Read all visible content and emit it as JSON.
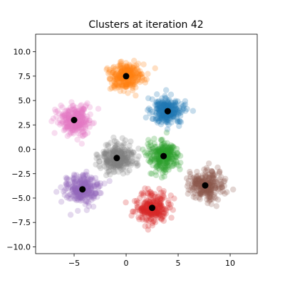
{
  "chart_data": {
    "type": "scatter",
    "title": "Clusters at iteration 42",
    "xlabel": "",
    "ylabel": "",
    "xlim": [
      -8.7,
      12.6
    ],
    "ylim": [
      -10.7,
      11.8
    ],
    "xticks": [
      -5,
      0,
      5,
      10
    ],
    "yticks": [
      -10.0,
      -7.5,
      -5.0,
      -2.5,
      0.0,
      2.5,
      5.0,
      7.5,
      10.0
    ],
    "xtick_labels": [
      "−5",
      "0",
      "5",
      "10"
    ],
    "ytick_labels": [
      "−10.0",
      "−7.5",
      "−5.0",
      "−2.5",
      "0.0",
      "2.5",
      "5.0",
      "7.5",
      "10.0"
    ],
    "grid": false,
    "legend": false,
    "point_alpha": 0.25,
    "centroid_color": "#000000",
    "clusters": [
      {
        "color": "#ff7f0e",
        "centroid": [
          0.0,
          7.5
        ],
        "spread": [
          1.45,
          1.35
        ]
      },
      {
        "color": "#1f77b4",
        "centroid": [
          4.0,
          3.9
        ],
        "spread": [
          1.45,
          1.35
        ]
      },
      {
        "color": "#e377c2",
        "centroid": [
          -5.0,
          3.0
        ],
        "spread": [
          1.45,
          1.35
        ]
      },
      {
        "color": "#7f7f7f",
        "centroid": [
          -0.9,
          -0.9
        ],
        "spread": [
          1.6,
          1.3
        ]
      },
      {
        "color": "#2ca02c",
        "centroid": [
          3.6,
          -0.7
        ],
        "spread": [
          1.25,
          1.35
        ]
      },
      {
        "color": "#9467bd",
        "centroid": [
          -4.2,
          -4.1
        ],
        "spread": [
          1.45,
          1.4
        ]
      },
      {
        "color": "#8c564b",
        "centroid": [
          7.6,
          -3.7
        ],
        "spread": [
          1.55,
          1.4
        ]
      },
      {
        "color": "#d62728",
        "centroid": [
          2.5,
          -6.0
        ],
        "spread": [
          1.45,
          1.35
        ]
      }
    ]
  }
}
